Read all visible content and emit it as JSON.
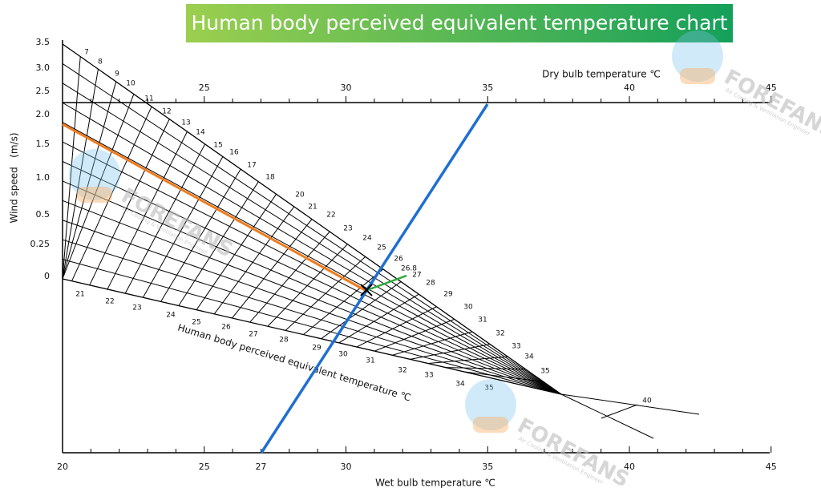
{
  "title": "Human body perceived equivalent temperature chart",
  "dry_bulb_axis": {
    "label": "Dry bulb temperature ℃",
    "ticks": [
      "25",
      "30",
      "35",
      "40",
      "45"
    ]
  },
  "wet_bulb_axis": {
    "label": "Wet bulb temperature ℃",
    "ticks": [
      "20",
      "25",
      "27",
      "30",
      "35",
      "40",
      "45"
    ]
  },
  "wind_axis": {
    "label": "Wind speed   (m/s)",
    "ticks": [
      "3.5",
      "3.0",
      "2.5",
      "2.0",
      "1.5",
      "1.0",
      "0.5",
      "0.25",
      "0"
    ]
  },
  "upper_scale": [
    "7",
    "8",
    "9",
    "10",
    "11",
    "12",
    "13",
    "14",
    "15",
    "16",
    "17",
    "18",
    "20",
    "21",
    "22",
    "23",
    "24",
    "25",
    "26",
    "26.8",
    "27",
    "28",
    "29",
    "30",
    "31",
    "32",
    "33",
    "34",
    "35"
  ],
  "perceived_axis": {
    "label": "Human body perceived equivalent temperature ℃",
    "ticks": [
      "21",
      "22",
      "23",
      "24",
      "25",
      "26",
      "27",
      "28",
      "29",
      "30",
      "31",
      "32",
      "33",
      "34",
      "35"
    ],
    "end_label": "40"
  },
  "watermark": {
    "brand": "FOREFANS",
    "tagline": "Air Cooling & Ventilation Engineer"
  }
}
